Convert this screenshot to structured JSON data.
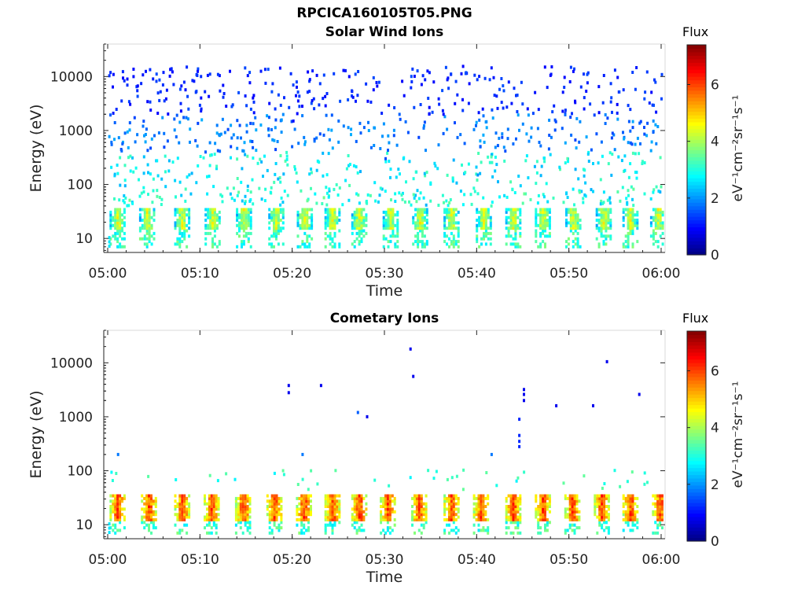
{
  "figure": {
    "filename": "RPCICA160105T05.PNG"
  },
  "colormap": {
    "label": "Flux",
    "unit": "eV⁻¹cm⁻²sr⁻¹s⁻¹",
    "ticks": [
      "0",
      "2",
      "4",
      "6"
    ],
    "range": [
      0,
      7.4
    ],
    "colors": [
      "#00007f",
      "#0000ff",
      "#007fff",
      "#00ffff",
      "#7fff7f",
      "#ffff00",
      "#ff7f00",
      "#ff0000",
      "#7f0000"
    ]
  },
  "chart_data": [
    {
      "type": "heatmap",
      "title": "Solar Wind Ions",
      "xlabel": "Time",
      "ylabel": "Energy (eV)",
      "x_ticks": [
        "05:00",
        "05:10",
        "05:20",
        "05:30",
        "05:40",
        "05:50",
        "06:00"
      ],
      "y_ticks": [
        "10",
        "100",
        "1000",
        "10000"
      ],
      "y_scale": "log",
      "ylim": [
        5.5,
        40000
      ],
      "xlim": [
        "05:00",
        "06:00"
      ],
      "burst_minutes": [
        0.9,
        4.1,
        7.9,
        11.2,
        14.6,
        18.1,
        21.2,
        24.2,
        27.1,
        30.5,
        33.7,
        37.1,
        40.6,
        43.8,
        47.0,
        50.3,
        53.6,
        56.5,
        59.5
      ],
      "low_energy_band_eV": [
        15,
        35
      ],
      "low_energy_peak_flux": 5.0,
      "scatter": [
        {
          "time": "05:02",
          "energy_eV": 9000,
          "flux": 1.0
        },
        {
          "time": "05:10",
          "energy_eV": 4000,
          "flux": 1.0
        },
        {
          "time": "05:20",
          "energy_eV": 1500,
          "flux": 1.0
        },
        {
          "time": "05:30",
          "energy_eV": 300,
          "flux": 1.5
        },
        {
          "time": "05:40",
          "energy_eV": 150,
          "flux": 2.0
        },
        {
          "time": "05:50",
          "energy_eV": 8000,
          "flux": 1.0
        }
      ]
    },
    {
      "type": "heatmap",
      "title": "Cometary Ions",
      "xlabel": "Time",
      "ylabel": "Energy (eV)",
      "x_ticks": [
        "05:00",
        "05:10",
        "05:20",
        "05:30",
        "05:40",
        "05:50",
        "06:00"
      ],
      "y_ticks": [
        "10",
        "100",
        "1000",
        "10000"
      ],
      "y_scale": "log",
      "ylim": [
        5.5,
        40000
      ],
      "xlim": [
        "05:00",
        "06:00"
      ],
      "burst_minutes": [
        0.9,
        4.3,
        7.9,
        11.1,
        14.5,
        17.9,
        21.1,
        24.2,
        27.1,
        30.2,
        33.6,
        37.1,
        40.3,
        43.8,
        47.0,
        50.2,
        53.4,
        56.5,
        59.7
      ],
      "low_energy_band_eV": [
        12,
        35
      ],
      "low_energy_peak_flux": 6.6,
      "scatter": [
        {
          "time": "05:19.5",
          "energy_eV": 3800,
          "flux": 0.8
        },
        {
          "time": "05:19.5",
          "energy_eV": 2800,
          "flux": 0.8
        },
        {
          "time": "05:23",
          "energy_eV": 3800,
          "flux": 0.8
        },
        {
          "time": "05:27",
          "energy_eV": 1200,
          "flux": 1.6
        },
        {
          "time": "05:28",
          "energy_eV": 1000,
          "flux": 0.8
        },
        {
          "time": "05:32.7",
          "energy_eV": 18000,
          "flux": 0.8
        },
        {
          "time": "05:33",
          "energy_eV": 5600,
          "flux": 0.8
        },
        {
          "time": "05:44.5",
          "energy_eV": 900,
          "flux": 1.2
        },
        {
          "time": "05:44.5",
          "energy_eV": 450,
          "flux": 1.2
        },
        {
          "time": "05:44.5",
          "energy_eV": 350,
          "flux": 1.2
        },
        {
          "time": "05:44.5",
          "energy_eV": 280,
          "flux": 1.2
        },
        {
          "time": "05:45",
          "energy_eV": 3200,
          "flux": 0.8
        },
        {
          "time": "05:45",
          "energy_eV": 2600,
          "flux": 0.8
        },
        {
          "time": "05:45",
          "energy_eV": 2000,
          "flux": 0.8
        },
        {
          "time": "05:48.5",
          "energy_eV": 1600,
          "flux": 0.8
        },
        {
          "time": "05:52.5",
          "energy_eV": 1600,
          "flux": 0.8
        },
        {
          "time": "05:54",
          "energy_eV": 10500,
          "flux": 0.8
        },
        {
          "time": "05:57.5",
          "energy_eV": 2600,
          "flux": 0.8
        },
        {
          "time": "05:41.5",
          "energy_eV": 200,
          "flux": 1.8
        },
        {
          "time": "05:21",
          "energy_eV": 200,
          "flux": 1.8
        },
        {
          "time": "05:01",
          "energy_eV": 200,
          "flux": 1.8
        }
      ]
    }
  ]
}
